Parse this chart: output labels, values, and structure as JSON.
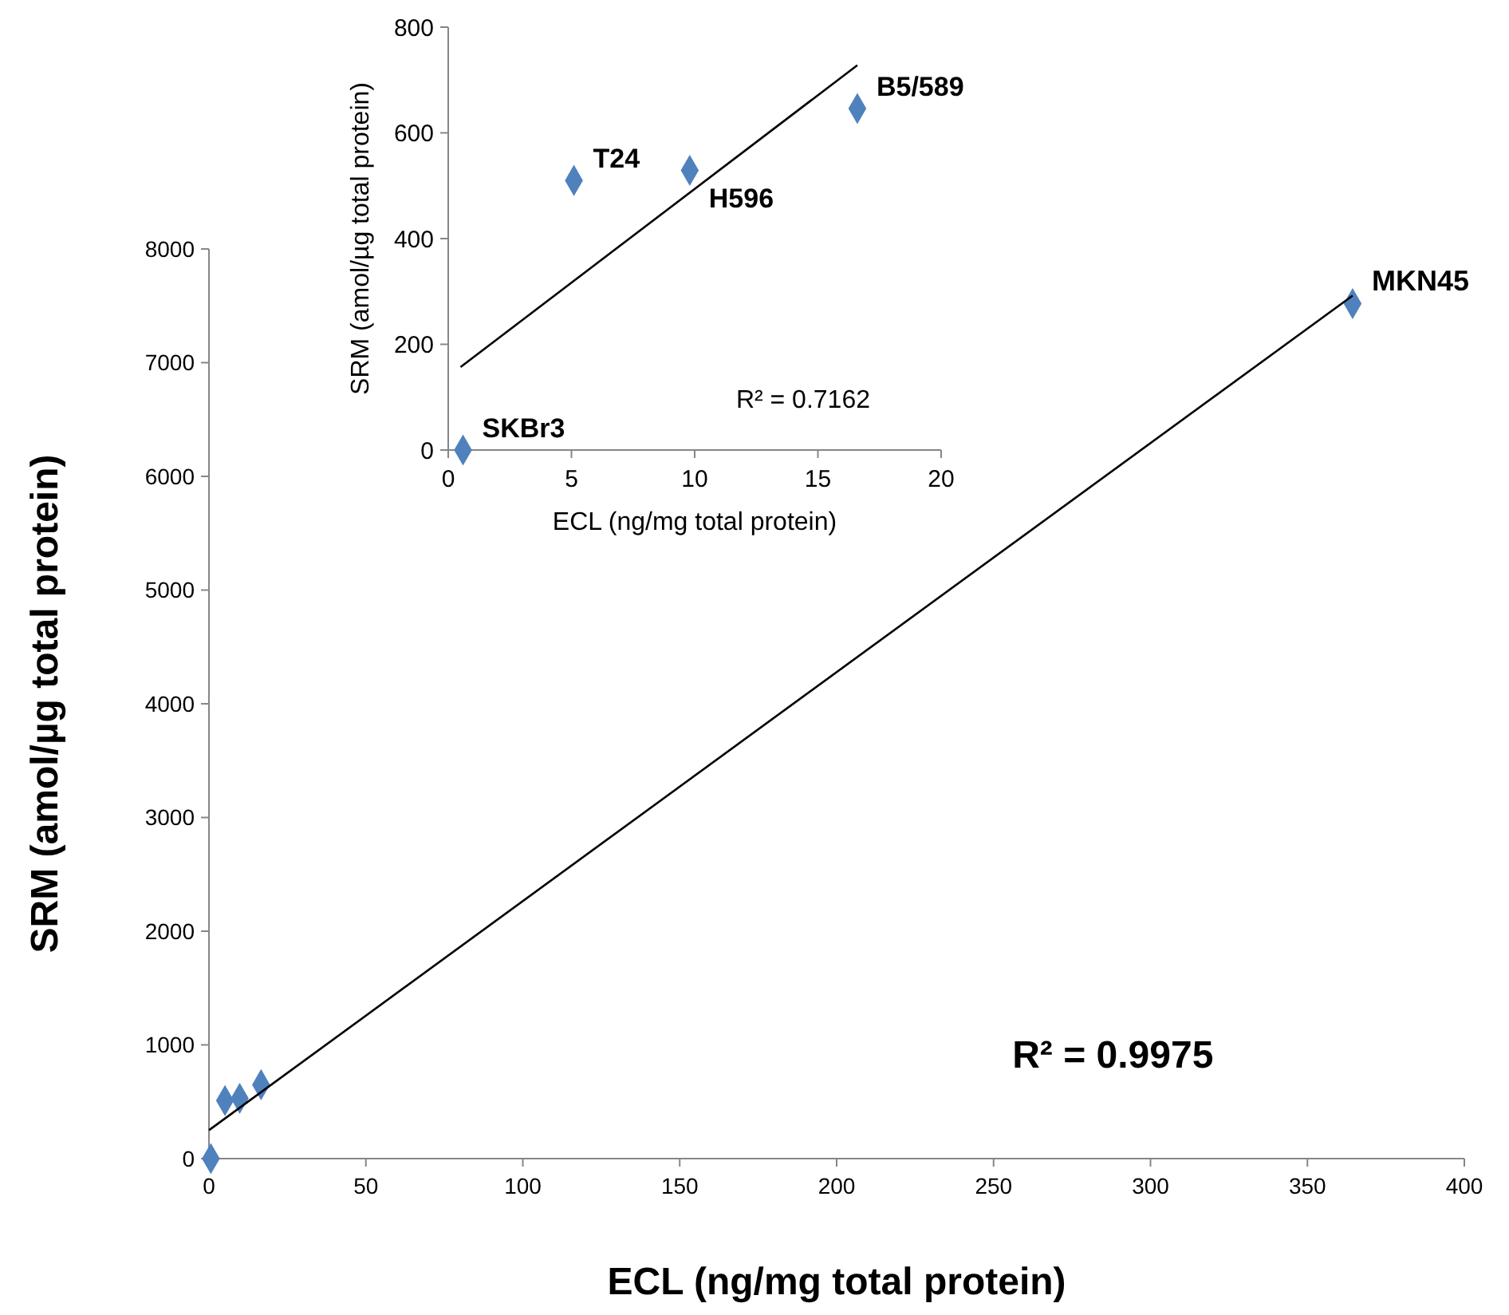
{
  "chart_data": [
    {
      "type": "scatter",
      "xlabel": "ECL (ng/mg total protein)",
      "ylabel": "SRM (amol/µg total protein)",
      "xlim": [
        0,
        400
      ],
      "ylim": [
        0,
        8000
      ],
      "xticks": [
        0,
        50,
        100,
        150,
        200,
        250,
        300,
        350,
        400
      ],
      "yticks": [
        0,
        1000,
        2000,
        3000,
        4000,
        5000,
        6000,
        7000,
        8000
      ],
      "grid": false,
      "series": [
        {
          "type": "scatter",
          "marker": "diamond",
          "color": "#4f81bd",
          "x": [
            0.6,
            5.1,
            9.8,
            16.6,
            364.4
          ],
          "values": [
            0,
            510,
            530,
            650,
            7520
          ]
        },
        {
          "type": "line",
          "color": "#000000",
          "x": [
            0,
            364.4
          ],
          "values": [
            250,
            7590
          ]
        }
      ],
      "annotations": [
        "R² = 0.9975",
        {
          "text": "MKN45",
          "x": 364.4,
          "y": 7520
        }
      ]
    },
    {
      "type": "scatter",
      "xlabel": "ECL (ng/mg total protein)",
      "ylabel": "SRM (amol/µg total protein)",
      "xlim": [
        0,
        20
      ],
      "ylim": [
        0,
        800
      ],
      "xticks": [
        0,
        5,
        10,
        15,
        20
      ],
      "yticks": [
        0,
        200,
        400,
        600,
        800
      ],
      "grid": false,
      "series": [
        {
          "type": "scatter",
          "marker": "diamond",
          "color": "#4f81bd",
          "x": [
            0.6,
            5.1,
            9.8,
            16.6
          ],
          "values": [
            0,
            510,
            529,
            646
          ]
        },
        {
          "type": "line",
          "color": "#000000",
          "x": [
            0.5,
            16.6
          ],
          "values": [
            157,
            728
          ]
        }
      ],
      "annotations": [
        "R² = 0.7162",
        {
          "text": "T24",
          "x": 5.1,
          "y": 510
        },
        {
          "text": "H596",
          "x": 9.8,
          "y": 529
        },
        {
          "text": "B5/589",
          "x": 16.6,
          "y": 646
        },
        {
          "text": "SKBr3",
          "x": 0.6,
          "y": 0
        }
      ]
    }
  ]
}
